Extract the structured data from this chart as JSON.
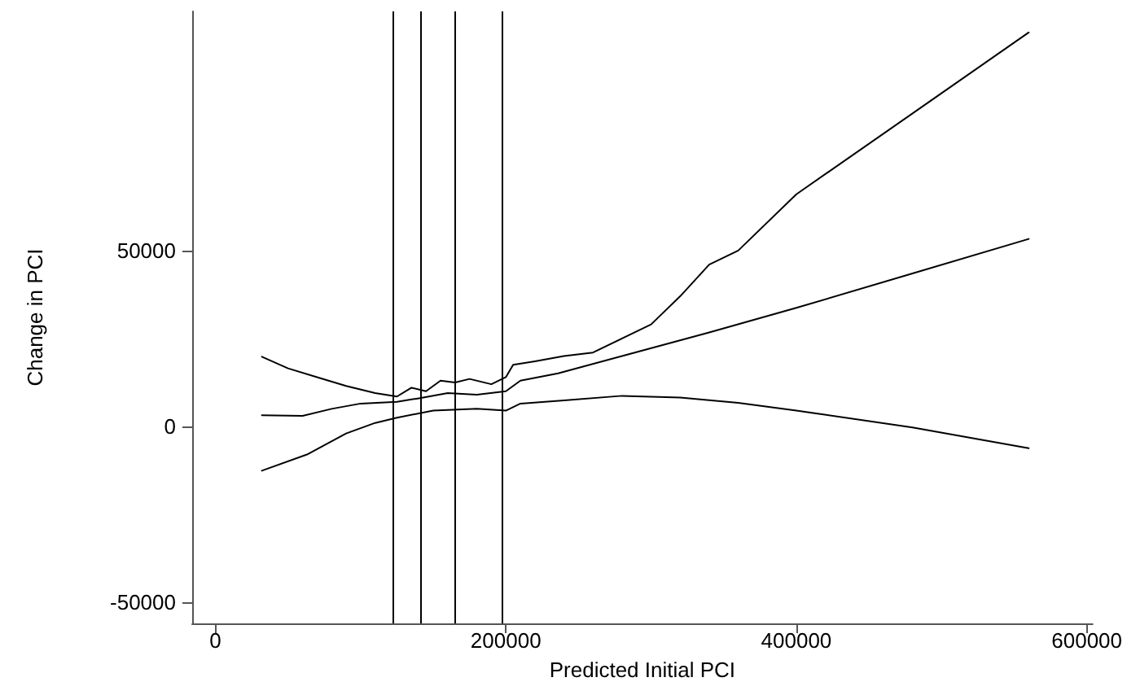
{
  "chart_data": {
    "type": "line",
    "xlabel": "Predicted Initial PCI",
    "ylabel": "Change in PCI",
    "xlim": [
      -16000,
      604000
    ],
    "ylim": [
      -56000,
      118000
    ],
    "xticks": [
      0,
      200000,
      400000,
      600000
    ],
    "yticks": [
      -50000,
      0,
      50000
    ],
    "grid": false,
    "marker": "none",
    "line_style": "solid",
    "series": [
      {
        "color": "#000000",
        "x": [
          32000,
          50000,
          70000,
          90000,
          110000,
          125000,
          135000,
          145000,
          155000,
          165000,
          175000,
          190000,
          200000,
          205000,
          220000,
          240000,
          260000,
          280000,
          300000,
          320000,
          340000,
          360000,
          400000,
          480000,
          560000
        ],
        "values": [
          19800,
          16500,
          14000,
          11500,
          9500,
          8500,
          11000,
          10000,
          13000,
          12500,
          13500,
          12000,
          14000,
          17500,
          18500,
          20000,
          21000,
          25000,
          29000,
          37000,
          46000,
          50000,
          66000,
          89000,
          112000
        ]
      },
      {
        "color": "#000000",
        "x": [
          32000,
          60000,
          80000,
          100000,
          125000,
          140000,
          160000,
          180000,
          200000,
          210000,
          236000,
          280000,
          340000,
          400000,
          480000,
          560000
        ],
        "values": [
          3200,
          3000,
          5000,
          6500,
          7000,
          8000,
          9500,
          9000,
          10000,
          13000,
          15100,
          20000,
          26700,
          33700,
          43500,
          53300
        ]
      },
      {
        "color": "#000000",
        "x": [
          32000,
          63000,
          90000,
          110000,
          125000,
          150000,
          180000,
          200000,
          210000,
          240000,
          280000,
          320000,
          360000,
          400000,
          480000,
          560000
        ],
        "values": [
          -12600,
          -8000,
          -2000,
          1000,
          2500,
          4500,
          5000,
          4500,
          6500,
          7400,
          8700,
          8200,
          6700,
          4500,
          -300,
          -6200
        ]
      }
    ],
    "ref_lines": [
      {
        "axis": "x",
        "value": 122600,
        "color": "#000000"
      },
      {
        "axis": "x",
        "value": 141800,
        "color": "#000000"
      },
      {
        "axis": "x",
        "value": 165300,
        "color": "#000000"
      },
      {
        "axis": "x",
        "value": 197300,
        "color": "#000000"
      }
    ]
  }
}
